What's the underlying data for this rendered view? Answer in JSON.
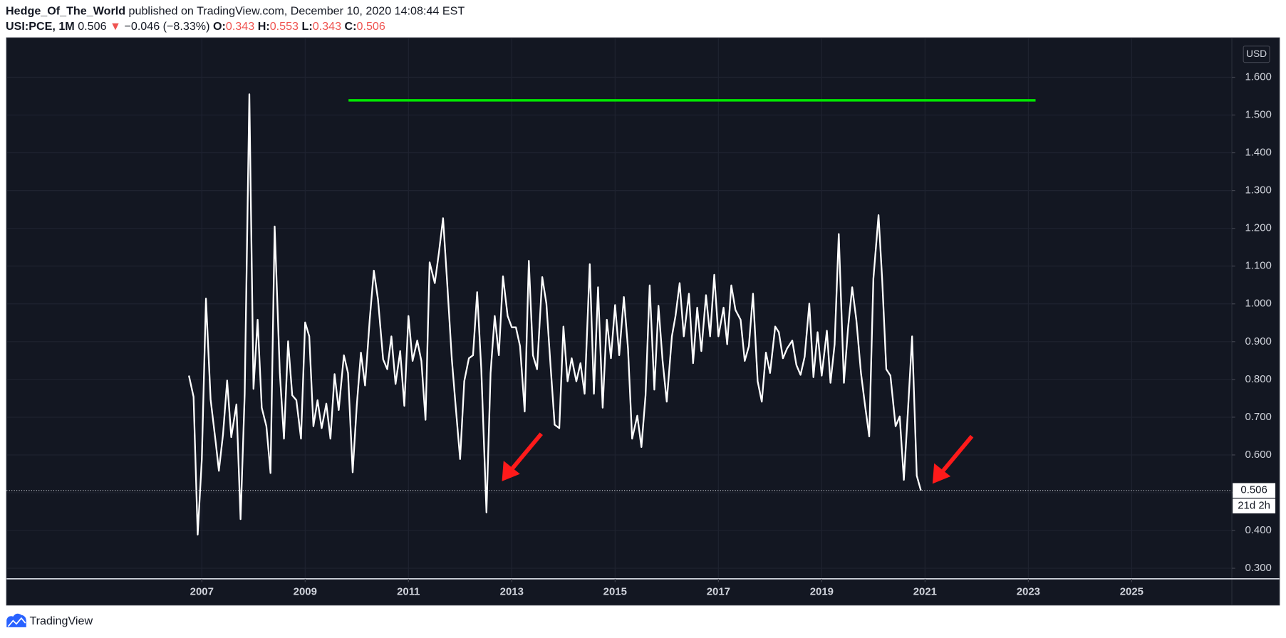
{
  "chart_data": {
    "type": "line",
    "publisher": "Hedge_Of_The_World",
    "published": "published on TradingView.com, December 10, 2020 14:08:44 EST",
    "symbol": "USI:PCE, 1M",
    "last": "0.506",
    "change_arrow": "▼",
    "change": "−0.046 (−8.33%)",
    "ohlc": [
      {
        "label": "O:",
        "value": "0.343"
      },
      {
        "label": "H:",
        "value": "0.553"
      },
      {
        "label": "L:",
        "value": "0.343"
      },
      {
        "label": "C:",
        "value": "0.506"
      }
    ],
    "currency": "USD",
    "countdown": "21d 2h",
    "brand": "TradingView",
    "x": [
      2006.75,
      2006.84,
      2006.92,
      2007.0,
      2007.08,
      2007.17,
      2007.27,
      2007.33,
      2007.41,
      2007.49,
      2007.57,
      2007.67,
      2007.75,
      2007.83,
      2007.92,
      2008.0,
      2008.08,
      2008.16,
      2008.25,
      2008.33,
      2008.41,
      2008.51,
      2008.59,
      2008.67,
      2008.75,
      2008.83,
      2008.92,
      2009.0,
      2009.08,
      2009.16,
      2009.24,
      2009.32,
      2009.41,
      2009.49,
      2009.57,
      2009.65,
      2009.75,
      2009.83,
      2009.92,
      2010.0,
      2010.08,
      2010.16,
      2010.25,
      2010.33,
      2010.41,
      2010.51,
      2010.59,
      2010.67,
      2010.75,
      2010.84,
      2010.92,
      2011.0,
      2011.08,
      2011.17,
      2011.25,
      2011.33,
      2011.41,
      2011.51,
      2011.59,
      2011.67,
      2011.75,
      2011.84,
      2011.92,
      2012.0,
      2012.08,
      2012.17,
      2012.25,
      2012.33,
      2012.41,
      2012.51,
      2012.59,
      2012.67,
      2012.75,
      2012.83,
      2012.92,
      2013.0,
      2013.08,
      2013.16,
      2013.25,
      2013.33,
      2013.41,
      2013.49,
      2013.59,
      2013.67,
      2013.75,
      2013.83,
      2013.92,
      2014.0,
      2014.08,
      2014.16,
      2014.25,
      2014.33,
      2014.41,
      2014.51,
      2014.59,
      2014.67,
      2014.76,
      2014.84,
      2014.92,
      2015.0,
      2015.08,
      2015.17,
      2015.25,
      2015.33,
      2015.43,
      2015.51,
      2015.59,
      2015.67,
      2015.76,
      2015.84,
      2015.92,
      2016.0,
      2016.1,
      2016.17,
      2016.25,
      2016.33,
      2016.43,
      2016.51,
      2016.59,
      2016.67,
      2016.76,
      2016.84,
      2016.92,
      2017.0,
      2017.1,
      2017.17,
      2017.25,
      2017.33,
      2017.43,
      2017.51,
      2017.59,
      2017.67,
      2017.76,
      2017.84,
      2017.92,
      2018.0,
      2018.1,
      2018.17,
      2018.25,
      2018.33,
      2018.43,
      2018.51,
      2018.59,
      2018.67,
      2018.76,
      2018.84,
      2018.92,
      2019.0,
      2019.1,
      2019.17,
      2019.25,
      2019.33,
      2019.43,
      2019.51,
      2019.59,
      2019.67,
      2019.76,
      2019.84,
      2019.92,
      2020.0,
      2020.1,
      2020.17,
      2020.25,
      2020.33,
      2020.43,
      2020.51,
      2020.59,
      2020.67,
      2020.75,
      2020.84,
      2020.92
    ],
    "series": [
      {
        "color": "#ffffff",
        "values": [
          0.81,
          0.754,
          0.389,
          0.589,
          1.014,
          0.747,
          0.632,
          0.558,
          0.654,
          0.797,
          0.647,
          0.734,
          0.43,
          0.762,
          1.555,
          0.775,
          0.958,
          0.725,
          0.676,
          0.552,
          1.205,
          0.817,
          0.643,
          0.901,
          0.758,
          0.745,
          0.643,
          0.951,
          0.914,
          0.676,
          0.745,
          0.671,
          0.736,
          0.643,
          0.814,
          0.719,
          0.864,
          0.817,
          0.554,
          0.732,
          0.871,
          0.784,
          0.958,
          1.088,
          1.012,
          0.853,
          0.827,
          0.914,
          0.788,
          0.875,
          0.73,
          0.968,
          0.849,
          0.903,
          0.849,
          0.693,
          1.11,
          1.055,
          1.136,
          1.227,
          1.055,
          0.853,
          0.719,
          0.589,
          0.795,
          0.856,
          0.864,
          1.031,
          0.827,
          0.448,
          0.817,
          0.968,
          0.864,
          1.073,
          0.968,
          0.938,
          0.938,
          0.888,
          0.715,
          1.114,
          0.864,
          0.827,
          1.071,
          1.001,
          0.838,
          0.68,
          0.671,
          0.94,
          0.795,
          0.856,
          0.795,
          0.843,
          0.762,
          1.105,
          0.762,
          1.044,
          0.725,
          0.958,
          0.856,
          0.997,
          0.864,
          1.018,
          0.882,
          0.643,
          0.704,
          0.621,
          0.758,
          1.049,
          0.773,
          0.995,
          0.849,
          0.741,
          0.914,
          0.968,
          1.055,
          0.914,
          1.027,
          0.843,
          0.99,
          0.875,
          1.023,
          0.914,
          1.077,
          0.914,
          0.99,
          0.893,
          1.049,
          0.984,
          0.958,
          0.849,
          0.888,
          1.027,
          0.795,
          0.741,
          0.871,
          0.817,
          0.94,
          0.925,
          0.856,
          0.882,
          0.903,
          0.838,
          0.812,
          0.86,
          1.001,
          0.806,
          0.925,
          0.81,
          0.929,
          0.791,
          0.893,
          1.185,
          0.791,
          0.936,
          1.044,
          0.958,
          0.817,
          0.73,
          0.649,
          1.066,
          1.235,
          1.066,
          0.827,
          0.81,
          0.676,
          0.702,
          0.534,
          0.719,
          0.914,
          0.545,
          0.506
        ]
      }
    ],
    "xlim": [
      2003.22,
      2026.94
    ],
    "xticks": [
      2007,
      2009,
      2011,
      2013,
      2015,
      2017,
      2019,
      2021,
      2023,
      2025
    ],
    "ylim": [
      0.272,
      1.7
    ],
    "yticks": [
      {
        "value": 0.3,
        "label": "0.300"
      },
      {
        "value": 0.4,
        "label": "0.400"
      },
      {
        "value": 0.5,
        "label": "0.500"
      },
      {
        "value": 0.6,
        "label": "0.600"
      },
      {
        "value": 0.7,
        "label": "0.700"
      },
      {
        "value": 0.8,
        "label": "0.800"
      },
      {
        "value": 0.9,
        "label": "0.900"
      },
      {
        "value": 1.0,
        "label": "1.000"
      },
      {
        "value": 1.1,
        "label": "1.100"
      },
      {
        "value": 1.2,
        "label": "1.200"
      },
      {
        "value": 1.3,
        "label": "1.300"
      },
      {
        "value": 1.4,
        "label": "1.400"
      },
      {
        "value": 1.5,
        "label": "1.500"
      },
      {
        "value": 1.6,
        "label": "1.600"
      }
    ],
    "grid": true,
    "hline": {
      "value": 1.539,
      "x": [
        2009.84,
        2023.14
      ],
      "color": "#00e600"
    }
  }
}
